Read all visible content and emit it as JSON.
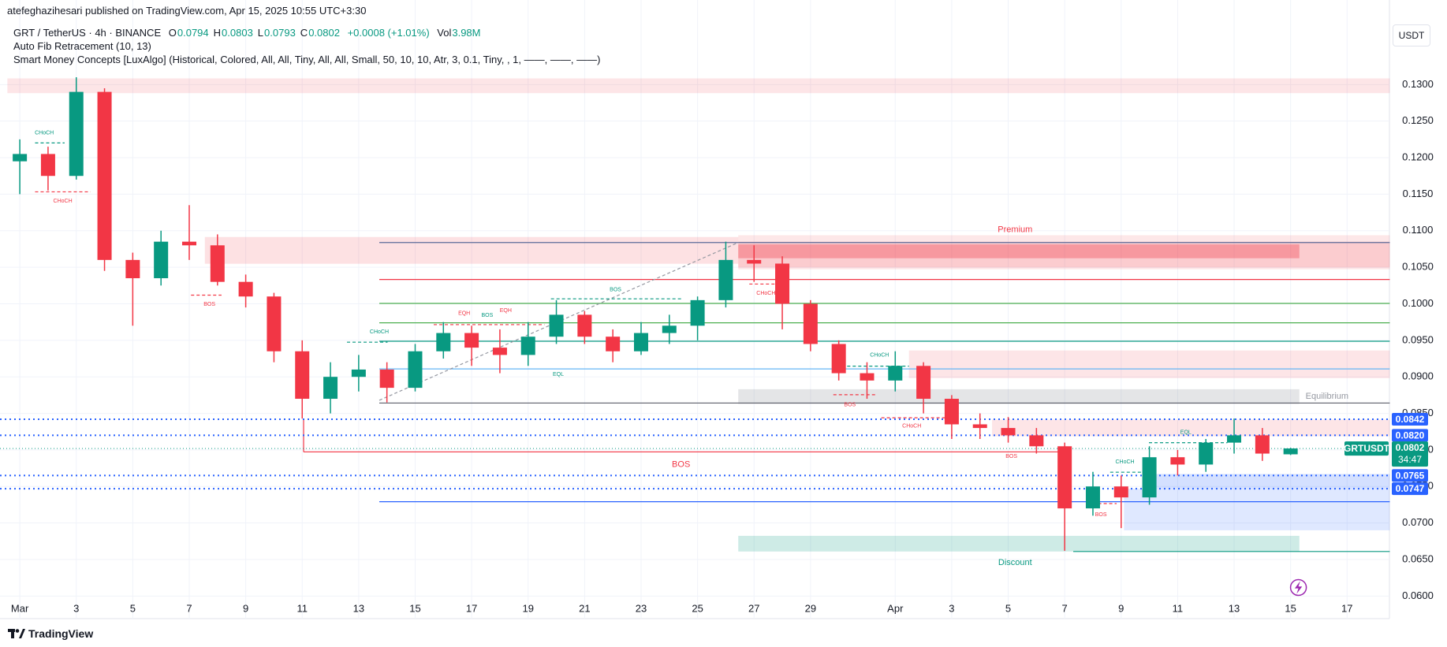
{
  "header": {
    "publisher": "atefeghazihesari published on TradingView.com, Apr 15, 2025 10:55 UTC+3:30",
    "symbol": "GRT / TetherUS · 4h · BINANCE",
    "stats": [
      {
        "label": "O",
        "value": "0.0794"
      },
      {
        "label": "H",
        "value": "0.0803"
      },
      {
        "label": "L",
        "value": "0.0793"
      },
      {
        "label": "C",
        "value": "0.0802"
      }
    ],
    "change": "+0.0008 (+1.01%)",
    "volume_label": "Vol",
    "volume": "3.98M",
    "indicator_fib": "Auto Fib Retracement (10, 13)",
    "indicator_smc": "Smart Money Concepts [LuxAlgo] (Historical, Colored, All, All, Tiny, All, All, Small, 50, 10, 10, Atr, 3, 0.1, Tiny, , 1, ——, ——, ——)"
  },
  "currency_button": "USDT",
  "footer": {
    "brand": "TradingView"
  },
  "chart_data": {
    "type": "candlestick",
    "up_color": "#089981",
    "down_color": "#f23645",
    "grid": true,
    "x": [
      0,
      1,
      2,
      3,
      4,
      5,
      6,
      7,
      8,
      9,
      10,
      11,
      12,
      13,
      14,
      15,
      16,
      17,
      18,
      19,
      20,
      21,
      22,
      23,
      24,
      25,
      26,
      27,
      28,
      29,
      30,
      31,
      32,
      33,
      34,
      35,
      36,
      37,
      38,
      39,
      40,
      41,
      42,
      43,
      44,
      45
    ],
    "open": [
      0.1195,
      0.1205,
      0.1175,
      0.129,
      0.106,
      0.1035,
      0.1085,
      0.108,
      0.103,
      0.101,
      0.0935,
      0.087,
      0.09,
      0.091,
      0.0885,
      0.0935,
      0.096,
      0.094,
      0.093,
      0.0955,
      0.0985,
      0.0955,
      0.0935,
      0.096,
      0.097,
      0.1005,
      0.106,
      0.1055,
      0.1,
      0.0945,
      0.0905,
      0.0895,
      0.0915,
      0.087,
      0.0835,
      0.083,
      0.082,
      0.0805,
      0.072,
      0.075,
      0.0735,
      0.079,
      0.078,
      0.081,
      0.082,
      0.0794
    ],
    "high": [
      0.1225,
      0.1215,
      0.131,
      0.1295,
      0.107,
      0.11,
      0.1135,
      0.1095,
      0.104,
      0.1015,
      0.095,
      0.092,
      0.093,
      0.092,
      0.0945,
      0.0975,
      0.097,
      0.0965,
      0.0975,
      0.1005,
      0.099,
      0.0965,
      0.0975,
      0.0985,
      0.101,
      0.1085,
      0.108,
      0.1065,
      0.1005,
      0.095,
      0.092,
      0.0935,
      0.092,
      0.0875,
      0.085,
      0.0845,
      0.083,
      0.081,
      0.077,
      0.0765,
      0.0805,
      0.08,
      0.0815,
      0.0843,
      0.083,
      0.0803
    ],
    "low": [
      0.115,
      0.1155,
      0.117,
      0.1045,
      0.097,
      0.1025,
      0.106,
      0.1025,
      0.0995,
      0.092,
      0.0843,
      0.085,
      0.088,
      0.0865,
      0.088,
      0.0925,
      0.0915,
      0.0905,
      0.0915,
      0.0945,
      0.0945,
      0.092,
      0.093,
      0.0945,
      0.095,
      0.0995,
      0.103,
      0.0965,
      0.0935,
      0.0895,
      0.087,
      0.088,
      0.085,
      0.0815,
      0.0815,
      0.081,
      0.0795,
      0.0662,
      0.071,
      0.0693,
      0.0725,
      0.0765,
      0.077,
      0.0795,
      0.0785,
      0.0793
    ],
    "close": [
      0.1205,
      0.1175,
      0.129,
      0.106,
      0.1035,
      0.1085,
      0.108,
      0.103,
      0.101,
      0.0935,
      0.087,
      0.09,
      0.091,
      0.0885,
      0.0935,
      0.096,
      0.094,
      0.093,
      0.0955,
      0.0985,
      0.0955,
      0.0935,
      0.096,
      0.097,
      0.1005,
      0.106,
      0.1055,
      0.1,
      0.0945,
      0.0905,
      0.0895,
      0.0915,
      0.087,
      0.0835,
      0.083,
      0.082,
      0.0805,
      0.072,
      0.075,
      0.0735,
      0.079,
      0.078,
      0.081,
      0.082,
      0.0795,
      0.0802
    ],
    "xlim": [
      -0.45,
      48.5
    ],
    "xticks": [
      {
        "value": 0,
        "label": "Mar"
      },
      {
        "value": 2,
        "label": "3"
      },
      {
        "value": 4,
        "label": "5"
      },
      {
        "value": 6,
        "label": "7"
      },
      {
        "value": 8,
        "label": "9"
      },
      {
        "value": 10,
        "label": "11"
      },
      {
        "value": 12,
        "label": "13"
      },
      {
        "value": 14,
        "label": "15"
      },
      {
        "value": 16,
        "label": "17"
      },
      {
        "value": 18,
        "label": "19"
      },
      {
        "value": 20,
        "label": "21"
      },
      {
        "value": 22,
        "label": "23"
      },
      {
        "value": 24,
        "label": "25"
      },
      {
        "value": 26,
        "label": "27"
      },
      {
        "value": 28,
        "label": "29"
      },
      {
        "value": 31,
        "label": "Apr"
      },
      {
        "value": 33,
        "label": "3"
      },
      {
        "value": 35,
        "label": "5"
      },
      {
        "value": 37,
        "label": "7"
      },
      {
        "value": 39,
        "label": "9"
      },
      {
        "value": 41,
        "label": "11"
      },
      {
        "value": 43,
        "label": "13"
      },
      {
        "value": 45,
        "label": "15"
      },
      {
        "value": 47,
        "label": "17"
      }
    ],
    "ylim": [
      0.0595,
      0.1378
    ],
    "yticks": [
      {
        "value": 0.06,
        "label": "0.0600"
      },
      {
        "value": 0.065,
        "label": "0.0650"
      },
      {
        "value": 0.07,
        "label": "0.0700"
      },
      {
        "value": 0.075,
        "label": "0.0750"
      },
      {
        "value": 0.08,
        "label": "0.0800"
      },
      {
        "value": 0.085,
        "label": "0.0850"
      },
      {
        "value": 0.09,
        "label": "0.0900"
      },
      {
        "value": 0.095,
        "label": "0.0950"
      },
      {
        "value": 0.1,
        "label": "0.1000"
      },
      {
        "value": 0.105,
        "label": "0.1050"
      },
      {
        "value": 0.11,
        "label": "0.1100"
      },
      {
        "value": 0.115,
        "label": "0.1150"
      },
      {
        "value": 0.12,
        "label": "0.1200"
      },
      {
        "value": 0.125,
        "label": "0.1250"
      },
      {
        "value": 0.13,
        "label": "0.1300"
      }
    ],
    "price_tags": [
      0.0842,
      {
        "value": 0.082,
        "label": "0.0820"
      },
      0.0765,
      0.0747
    ],
    "price_tag_color": "#2962ff",
    "current": {
      "symbol": "GRTUSDT",
      "value": 0.0802,
      "countdown": "34:47",
      "color": "#089981"
    },
    "annotations": [
      {
        "text": "Premium",
        "color": "#f23645"
      },
      {
        "text": "Equilibrium",
        "color": "#9598a1"
      },
      {
        "text": "Discount",
        "color": "#089981"
      },
      {
        "text": "CHoCH",
        "color": "#089981"
      },
      {
        "text": "CHoCH",
        "color": "#f23645"
      },
      {
        "text": "BOS",
        "color": "#f23645"
      },
      {
        "text": "CHoCH",
        "color": "#089981"
      },
      {
        "text": "EQH",
        "color": "#f23645"
      },
      {
        "text": "BOS",
        "color": "#089981"
      },
      {
        "text": "EQH",
        "color": "#f23645"
      },
      {
        "text": "BOS",
        "color": "#089981"
      },
      {
        "text": "EQL",
        "color": "#089981"
      },
      {
        "text": "CHoCH",
        "color": "#f23645"
      },
      {
        "text": "CHoCH",
        "color": "#089981"
      },
      {
        "text": "BOS",
        "color": "#f23645"
      },
      {
        "text": "CHoCH",
        "color": "#f23645"
      },
      {
        "text": "BOS",
        "color": "#f23645"
      },
      {
        "text": "BOS",
        "color": "#f23645"
      },
      {
        "text": "BOS",
        "color": "#f23645"
      },
      {
        "text": "CHoCH",
        "color": "#089981"
      },
      {
        "text": "EQL",
        "color": "#089981"
      }
    ]
  }
}
